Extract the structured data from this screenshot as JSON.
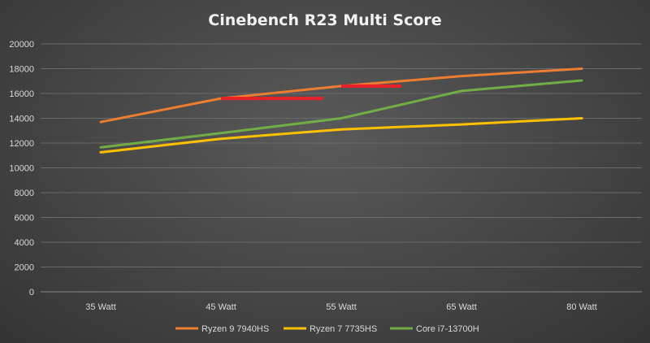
{
  "chart_data": {
    "type": "line",
    "title": "Cinebench R23 Multi Score",
    "xlabel": "",
    "ylabel": "",
    "categories": [
      "35 Watt",
      "45 Watt",
      "55 Watt",
      "65 Watt",
      "80 Watt"
    ],
    "ylim": [
      0,
      20000
    ],
    "yticks": [
      0,
      2000,
      4000,
      6000,
      8000,
      10000,
      12000,
      14000,
      16000,
      18000,
      20000
    ],
    "grid": true,
    "legend_position": "bottom",
    "series": [
      {
        "name": "Ryzen 9 7940HS",
        "color": "#ed7d31",
        "values": [
          13700,
          15600,
          16600,
          17400,
          18000
        ]
      },
      {
        "name": "Ryzen 7 7735HS",
        "color": "#ffc000",
        "values": [
          11250,
          12350,
          13100,
          13500,
          14000
        ]
      },
      {
        "name": "Core i7-13700H",
        "color": "#70ad47",
        "values": [
          11650,
          12800,
          14000,
          16200,
          17050
        ]
      }
    ],
    "annotations": [
      {
        "type": "horizontal-line",
        "color": "#e8202a",
        "y": 15600,
        "x_from": "45 Watt",
        "x_to": "55 Watt",
        "x_to_offset": 0.85
      },
      {
        "type": "horizontal-line",
        "color": "#e8202a",
        "y": 16600,
        "x_from": "55 Watt",
        "x_to": "65 Watt",
        "x_to_offset": 0.5
      }
    ]
  }
}
